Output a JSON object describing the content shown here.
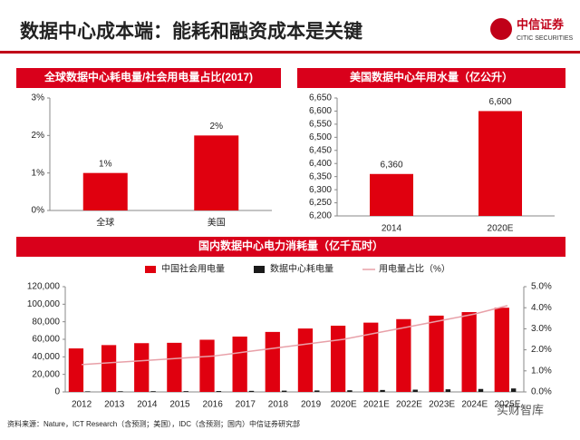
{
  "title": "数据中心成本端：能耗和融资成本是关键",
  "logo": {
    "name": "中信证券",
    "sub": "CITIC SECURITIES"
  },
  "source": "资料来源：Nature，ICT Research（含预测；美国），IDC（含预测；国内）中信证券研究部",
  "watermark": "买财智库",
  "chart_data": [
    {
      "type": "bar",
      "title": "全球数据中心耗电量/社会用电量占比(2017)",
      "categories": [
        "全球",
        "美国"
      ],
      "values": [
        1,
        2
      ],
      "value_labels": [
        "1%",
        "2%"
      ],
      "color": "#e0000f",
      "ylim": [
        0,
        3
      ],
      "yticks": [
        {
          "value": 0,
          "label": "0%"
        },
        {
          "value": 1,
          "label": "1%"
        },
        {
          "value": 2,
          "label": "2%"
        },
        {
          "value": 3,
          "label": "3%"
        }
      ]
    },
    {
      "type": "bar",
      "title": "美国数据中心年用水量（亿公升）",
      "categories": [
        "2014",
        "2020E"
      ],
      "values": [
        6360,
        6600
      ],
      "value_labels": [
        "6,360",
        "6,600"
      ],
      "color": "#e0000f",
      "ylim": [
        6200,
        6650
      ],
      "yticks": [
        {
          "value": 6200,
          "label": "6,200"
        },
        {
          "value": 6250,
          "label": "6,250"
        },
        {
          "value": 6300,
          "label": "6,300"
        },
        {
          "value": 6350,
          "label": "6,350"
        },
        {
          "value": 6400,
          "label": "6,400"
        },
        {
          "value": 6450,
          "label": "6,450"
        },
        {
          "value": 6500,
          "label": "6,500"
        },
        {
          "value": 6550,
          "label": "6,550"
        },
        {
          "value": 6600,
          "label": "6,600"
        },
        {
          "value": 6650,
          "label": "6,650"
        }
      ]
    },
    {
      "type": "bar-line",
      "title": "国内数据中心电力消耗量（亿千瓦时）",
      "categories": [
        "2012",
        "2013",
        "2014",
        "2015",
        "2016",
        "2017",
        "2018",
        "2019",
        "2020E",
        "2021E",
        "2022E",
        "2023E",
        "2024E",
        "2025E"
      ],
      "series": [
        {
          "name": "中国社会用电量",
          "color": "#e0000f",
          "values": [
            49600,
            53400,
            55600,
            56000,
            59500,
            63100,
            68400,
            72300,
            75500,
            79000,
            83000,
            87000,
            91000,
            96000
          ]
        },
        {
          "name": "数据中心耗电量",
          "color": "#1a1a1a",
          "values": [
            645,
            750,
            835,
            900,
            1010,
            1200,
            1440,
            1660,
            1890,
            2210,
            2570,
            2960,
            3370,
            3940
          ]
        },
        {
          "name": "用电量占比（%）",
          "color": "#e8a0a8",
          "axis": "y2",
          "values": [
            1.3,
            1.4,
            1.5,
            1.6,
            1.7,
            1.9,
            2.1,
            2.3,
            2.5,
            2.8,
            3.1,
            3.4,
            3.7,
            4.1
          ]
        }
      ],
      "ylim": [
        0,
        120000
      ],
      "yticks": [
        0,
        {
          "value": 20000,
          "label": "20,000"
        },
        {
          "value": 40000,
          "label": "40,000"
        },
        {
          "value": 60000,
          "label": "60,000"
        },
        {
          "value": 80000,
          "label": "80,000"
        },
        {
          "value": 100000,
          "label": "100,000"
        },
        {
          "value": 120000,
          "label": "120,000"
        }
      ],
      "y2lim": [
        0,
        5
      ],
      "y2ticks": [
        {
          "value": 0,
          "label": "0.0%"
        },
        {
          "value": 1,
          "label": "1.0%"
        },
        {
          "value": 2,
          "label": "2.0%"
        },
        {
          "value": 3,
          "label": "3.0%"
        },
        {
          "value": 4,
          "label": "4.0%"
        },
        {
          "value": 5,
          "label": "5.0%"
        }
      ]
    }
  ]
}
